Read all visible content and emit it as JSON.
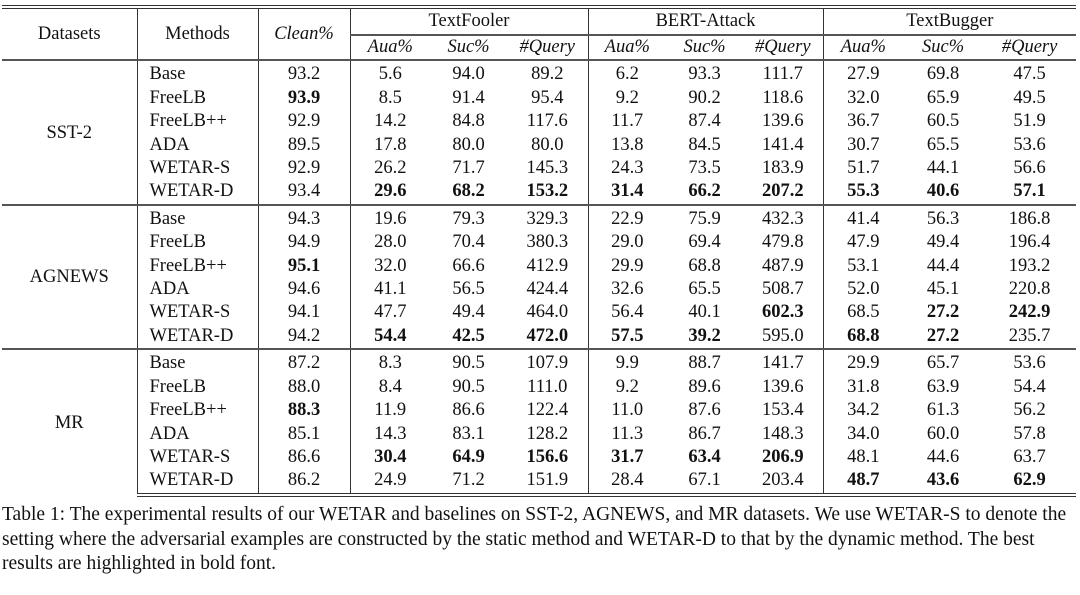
{
  "header": {
    "datasets": "Datasets",
    "methods": "Methods",
    "clean": "Clean%",
    "attacks": [
      "TextFooler",
      "BERT-Attack",
      "TextBugger"
    ],
    "metrics": [
      "Aua%",
      "Suc%",
      "#Query"
    ]
  },
  "blocks": [
    {
      "dataset": "SST-2",
      "rows": [
        {
          "method": "Base",
          "values": [
            "93.2",
            "5.6",
            "94.0",
            "89.2",
            "6.2",
            "93.3",
            "111.7",
            "27.9",
            "69.8",
            "47.5"
          ],
          "bold": []
        },
        {
          "method": "FreeLB",
          "values": [
            "93.9",
            "8.5",
            "91.4",
            "95.4",
            "9.2",
            "90.2",
            "118.6",
            "32.0",
            "65.9",
            "49.5"
          ],
          "bold": [
            0
          ]
        },
        {
          "method": "FreeLB++",
          "values": [
            "92.9",
            "14.2",
            "84.8",
            "117.6",
            "11.7",
            "87.4",
            "139.6",
            "36.7",
            "60.5",
            "51.9"
          ],
          "bold": []
        },
        {
          "method": "ADA",
          "values": [
            "89.5",
            "17.8",
            "80.0",
            "80.0",
            "13.8",
            "84.5",
            "141.4",
            "30.7",
            "65.5",
            "53.6"
          ],
          "bold": []
        },
        {
          "method": "WETAR-S",
          "values": [
            "92.9",
            "26.2",
            "71.7",
            "145.3",
            "24.3",
            "73.5",
            "183.9",
            "51.7",
            "44.1",
            "56.6"
          ],
          "bold": []
        },
        {
          "method": "WETAR-D",
          "values": [
            "93.4",
            "29.6",
            "68.2",
            "153.2",
            "31.4",
            "66.2",
            "207.2",
            "55.3",
            "40.6",
            "57.1"
          ],
          "bold": [
            1,
            2,
            3,
            4,
            5,
            6,
            7,
            8,
            9
          ]
        }
      ]
    },
    {
      "dataset": "AGNEWS",
      "rows": [
        {
          "method": "Base",
          "values": [
            "94.3",
            "19.6",
            "79.3",
            "329.3",
            "22.9",
            "75.9",
            "432.3",
            "41.4",
            "56.3",
            "186.8"
          ],
          "bold": []
        },
        {
          "method": "FreeLB",
          "values": [
            "94.9",
            "28.0",
            "70.4",
            "380.3",
            "29.0",
            "69.4",
            "479.8",
            "47.9",
            "49.4",
            "196.4"
          ],
          "bold": []
        },
        {
          "method": "FreeLB++",
          "values": [
            "95.1",
            "32.0",
            "66.6",
            "412.9",
            "29.9",
            "68.8",
            "487.9",
            "53.1",
            "44.4",
            "193.2"
          ],
          "bold": [
            0
          ]
        },
        {
          "method": "ADA",
          "values": [
            "94.6",
            "41.1",
            "56.5",
            "424.4",
            "32.6",
            "65.5",
            "508.7",
            "52.0",
            "45.1",
            "220.8"
          ],
          "bold": []
        },
        {
          "method": "WETAR-S",
          "values": [
            "94.1",
            "47.7",
            "49.4",
            "464.0",
            "56.4",
            "40.1",
            "602.3",
            "68.5",
            "27.2",
            "242.9"
          ],
          "bold": [
            6,
            8,
            9
          ]
        },
        {
          "method": "WETAR-D",
          "values": [
            "94.2",
            "54.4",
            "42.5",
            "472.0",
            "57.5",
            "39.2",
            "595.0",
            "68.8",
            "27.2",
            "235.7"
          ],
          "bold": [
            1,
            2,
            3,
            4,
            5,
            7,
            8
          ]
        }
      ]
    },
    {
      "dataset": "MR",
      "rows": [
        {
          "method": "Base",
          "values": [
            "87.2",
            "8.3",
            "90.5",
            "107.9",
            "9.9",
            "88.7",
            "141.7",
            "29.9",
            "65.7",
            "53.6"
          ],
          "bold": []
        },
        {
          "method": "FreeLB",
          "values": [
            "88.0",
            "8.4",
            "90.5",
            "111.0",
            "9.2",
            "89.6",
            "139.6",
            "31.8",
            "63.9",
            "54.4"
          ],
          "bold": []
        },
        {
          "method": "FreeLB++",
          "values": [
            "88.3",
            "11.9",
            "86.6",
            "122.4",
            "11.0",
            "87.6",
            "153.4",
            "34.2",
            "61.3",
            "56.2"
          ],
          "bold": [
            0
          ]
        },
        {
          "method": "ADA",
          "values": [
            "85.1",
            "14.3",
            "83.1",
            "128.2",
            "11.3",
            "86.7",
            "148.3",
            "34.0",
            "60.0",
            "57.8"
          ],
          "bold": []
        },
        {
          "method": "WETAR-S",
          "values": [
            "86.6",
            "30.4",
            "64.9",
            "156.6",
            "31.7",
            "63.4",
            "206.9",
            "48.1",
            "44.6",
            "63.7"
          ],
          "bold": [
            1,
            2,
            3,
            4,
            5,
            6
          ]
        },
        {
          "method": "WETAR-D",
          "values": [
            "86.2",
            "24.9",
            "71.2",
            "151.9",
            "28.4",
            "67.1",
            "203.4",
            "48.7",
            "43.6",
            "62.9"
          ],
          "bold": [
            7,
            8,
            9
          ]
        }
      ]
    }
  ],
  "caption": "Table 1: The experimental results of our WETAR and baselines on SST-2, AGNEWS, and MR datasets. We use WETAR-S to denote the setting where the adversarial examples are constructed by the static method and WETAR-D to that by the dynamic method. The best results are highlighted in bold font."
}
